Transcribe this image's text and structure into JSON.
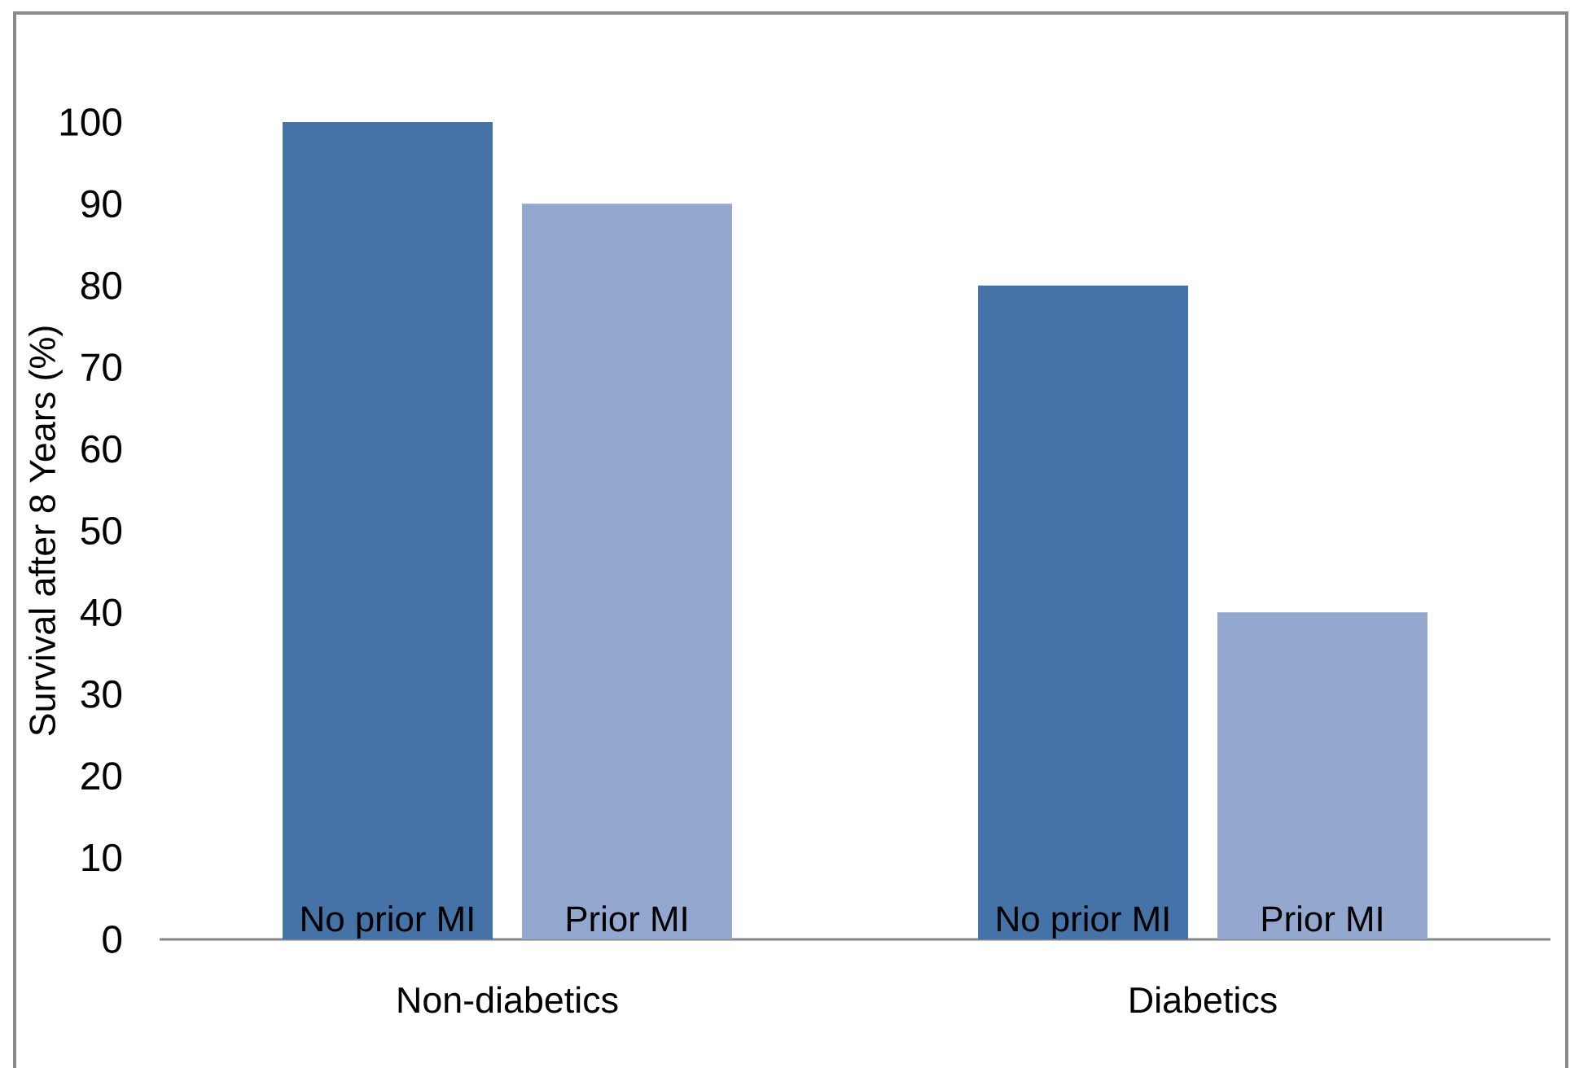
{
  "chart_data": {
    "type": "bar",
    "ylabel": "Survival after 8 Years (%)",
    "categories": [
      "Non-diabetics",
      "Diabetics"
    ],
    "series": [
      {
        "name": "No prior MI",
        "color": "#4572a7",
        "values": [
          100,
          80
        ]
      },
      {
        "name": "Prior MI",
        "color": "#94a8cf",
        "values": [
          90,
          40
        ]
      }
    ],
    "ylim": [
      0,
      100
    ],
    "yticks": [
      0,
      10,
      20,
      30,
      40,
      50,
      60,
      70,
      80,
      90,
      100
    ],
    "grid": false,
    "legend": false
  }
}
